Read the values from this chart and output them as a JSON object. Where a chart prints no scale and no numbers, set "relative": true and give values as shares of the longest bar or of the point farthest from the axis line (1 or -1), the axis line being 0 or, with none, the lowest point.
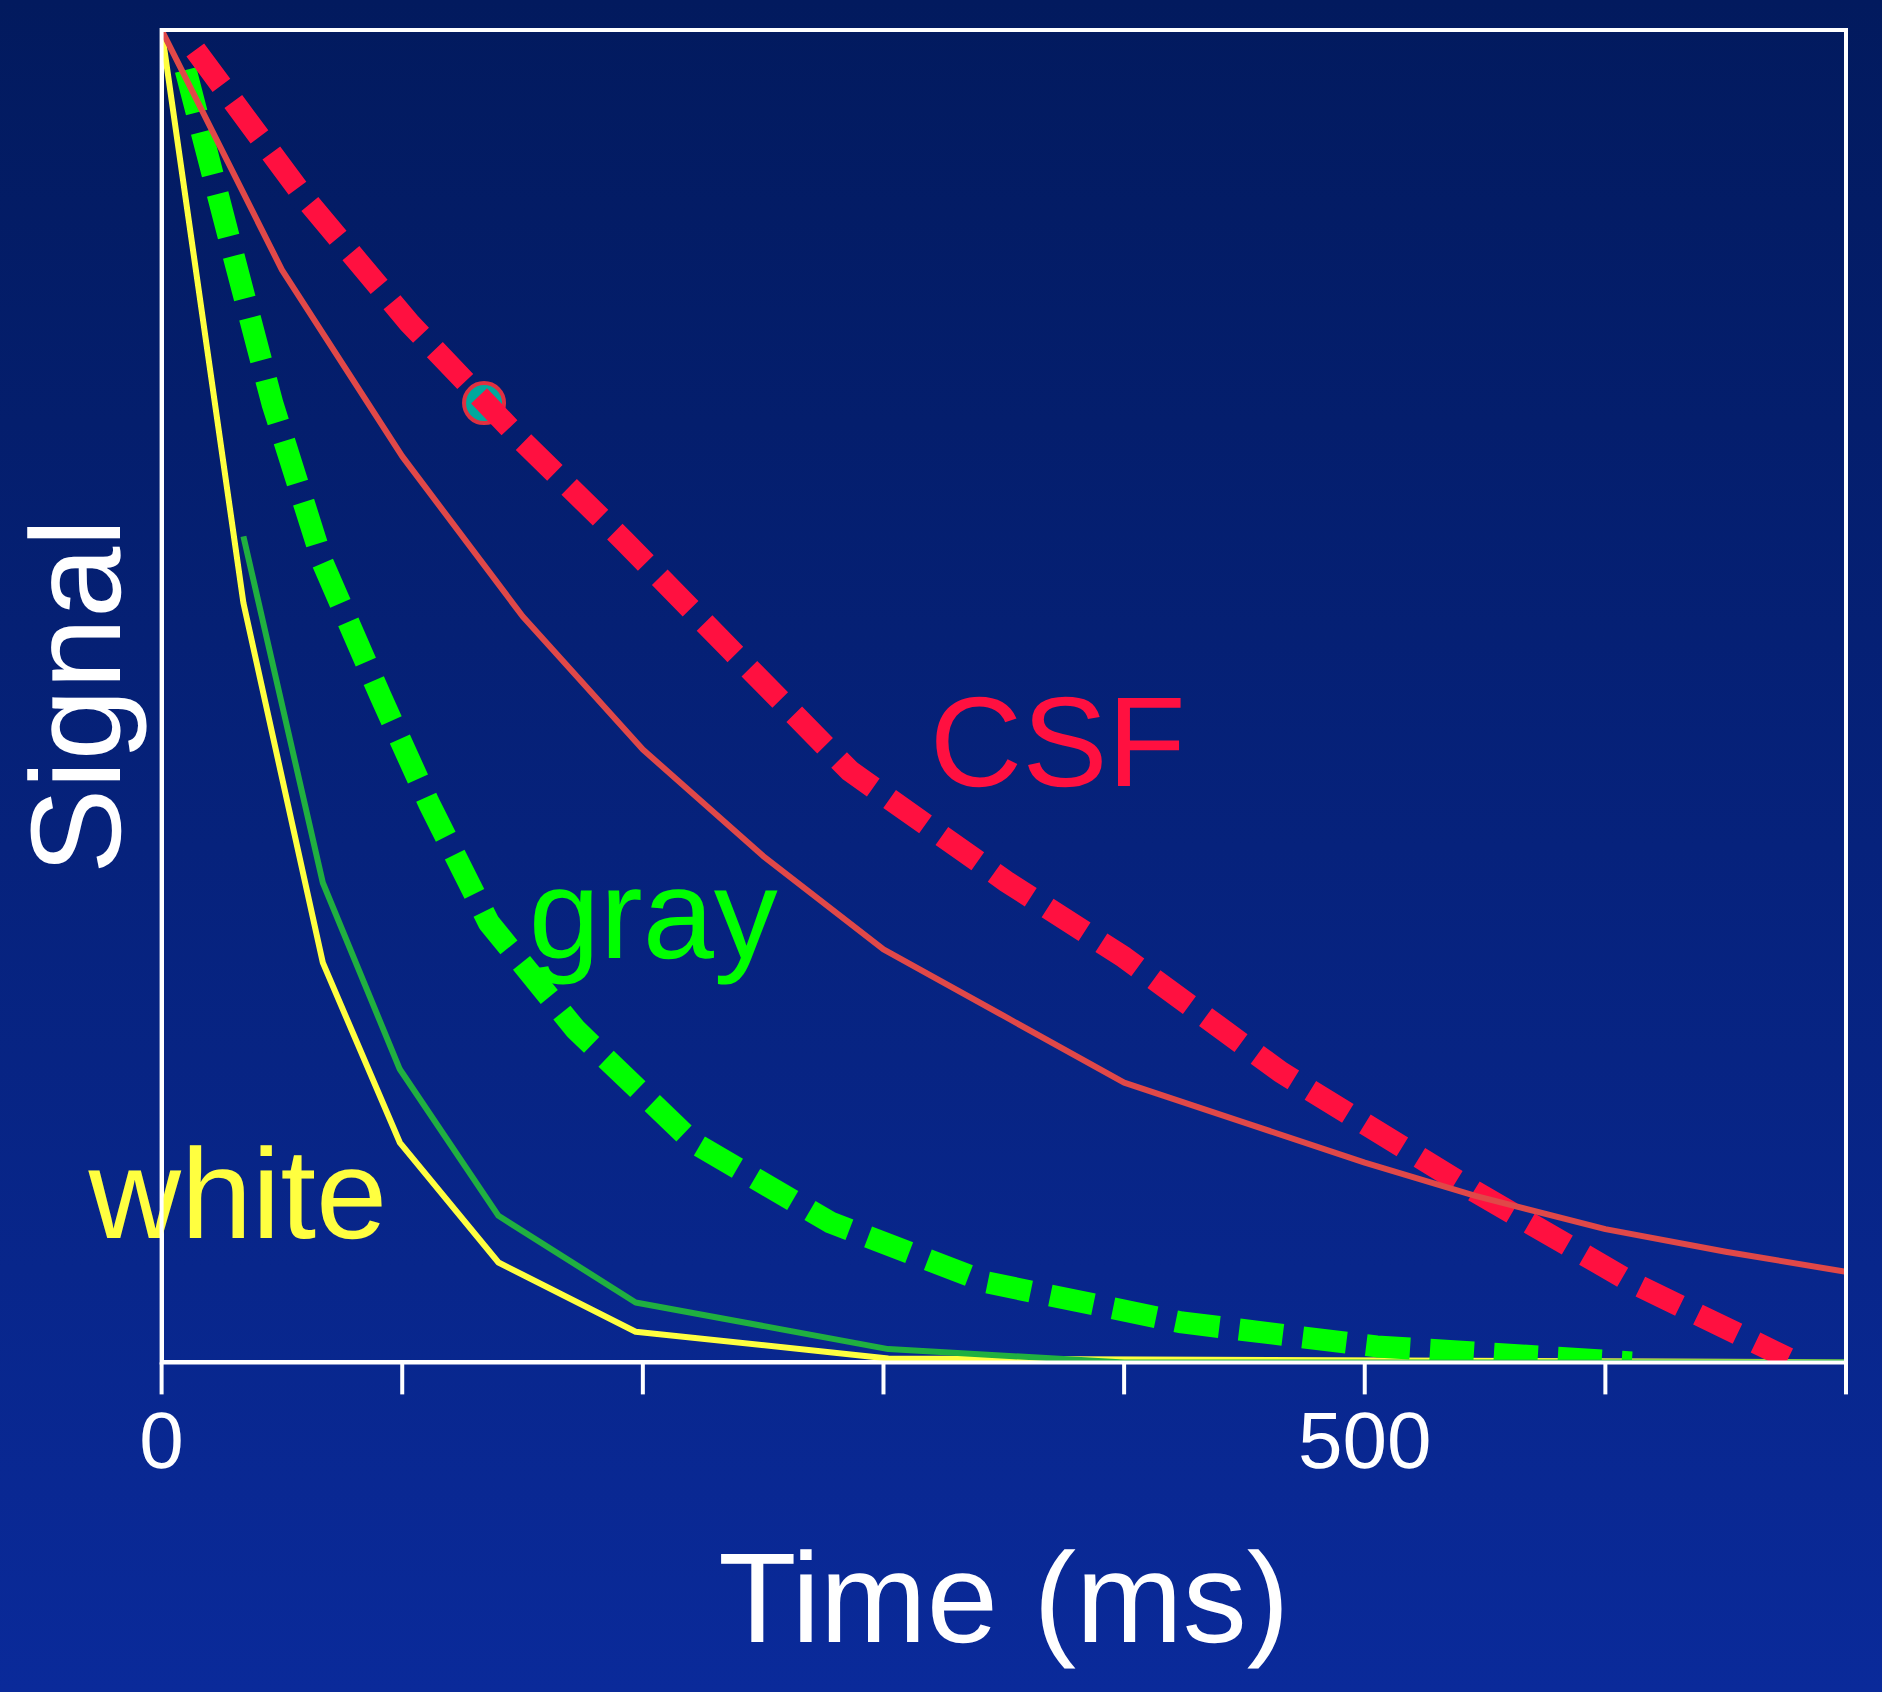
{
  "chart_data": {
    "type": "line",
    "relative": true,
    "xlabel": "Time (ms)",
    "ylabel": "Signal",
    "xlim": [
      0,
      700
    ],
    "xticks": [
      0,
      {
        "value": 100,
        "label": null
      },
      {
        "value": 200,
        "label": null
      },
      {
        "value": 300,
        "label": null
      },
      {
        "value": 400,
        "label": null
      },
      500,
      {
        "value": 600,
        "label": null
      },
      {
        "value": 700,
        "label": null
      }
    ],
    "grid": false,
    "legend": false,
    "marker": "none",
    "series": [
      {
        "color": "#e04848",
        "line_style": "solid",
        "x": [
          0,
          50,
          100,
          150,
          200,
          250,
          300,
          350,
          400,
          450,
          500,
          546,
          600,
          650,
          700
        ],
        "values": [
          1,
          0.82,
          0.68,
          0.56,
          0.46,
          0.38,
          0.31,
          0.26,
          0.21,
          0.18,
          0.15,
          0.125,
          0.1,
          0.083,
          0.068
        ]
      },
      {
        "name": "CSF",
        "color": "#ff1040",
        "line_style": "dashed",
        "x": [
          14,
          59,
          103,
          148,
          192,
          237,
          286,
          351,
          400,
          465,
          546,
          611,
          676
        ],
        "values": [
          0.985,
          0.875,
          0.78,
          0.695,
          0.617,
          0.534,
          0.444,
          0.361,
          0.304,
          0.218,
          0.128,
          0.06,
          0.003
        ]
      },
      {
        "color": "#20b040",
        "line_style": "solid",
        "x": [
          34,
          67,
          99,
          140,
          197,
          302,
          400,
          700
        ],
        "values": [
          0.62,
          0.36,
          0.22,
          0.11,
          0.045,
          0.01,
          0,
          0
        ]
      },
      {
        "name": "gray",
        "color": "#00ff00",
        "line_style": "dashed",
        "x": [
          10,
          30,
          46,
          67,
          91,
          111,
          136,
          172,
          221,
          278,
          343,
          424,
          505,
          611
        ],
        "values": [
          0.97,
          0.83,
          0.72,
          0.6,
          0.5,
          0.42,
          0.33,
          0.25,
          0.165,
          0.105,
          0.06,
          0.03,
          0.012,
          0
        ]
      },
      {
        "name": "white",
        "color": "#ffff40",
        "line_style": "solid",
        "x": [
          0,
          34,
          67,
          99,
          140,
          197,
          302,
          700
        ],
        "values": [
          1,
          0.57,
          0.3,
          0.165,
          0.075,
          0.023,
          0.003,
          0
        ]
      },
      {
        "type": "scatter",
        "color": "#00a99d",
        "marker": "circle",
        "x": [
          134
        ],
        "values": [
          0.72
        ]
      }
    ]
  }
}
